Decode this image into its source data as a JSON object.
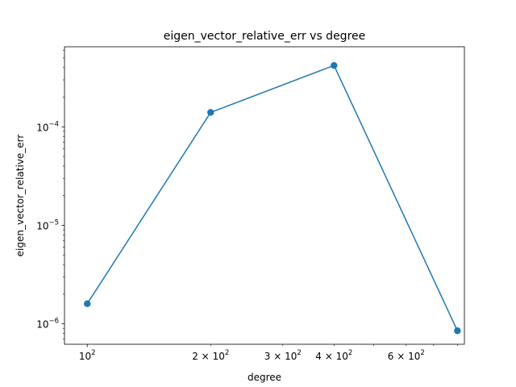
{
  "chart_data": {
    "type": "line",
    "title": "eigen_vector_relative_err vs degree",
    "xlabel": "degree",
    "ylabel": "eigen_vector_relative_err",
    "x_scale": "log",
    "y_scale": "log",
    "xlim": [
      88,
      832
    ],
    "ylim": [
      6.2e-07,
      0.00065
    ],
    "x_major_ticks": [
      {
        "value": 100,
        "base": "10",
        "exp": "2"
      }
    ],
    "x_minor_labeled_ticks": [
      {
        "value": 200,
        "coef": "2",
        "base": "10",
        "exp": "2"
      },
      {
        "value": 300,
        "coef": "3",
        "base": "10",
        "exp": "2"
      },
      {
        "value": 400,
        "coef": "4",
        "base": "10",
        "exp": "2"
      },
      {
        "value": 600,
        "coef": "6",
        "base": "10",
        "exp": "2"
      }
    ],
    "x_minor_unlabeled_ticks": [
      500,
      700,
      800
    ],
    "y_major_ticks": [
      {
        "value": 1e-06,
        "base": "10",
        "exp": "−6"
      },
      {
        "value": 1e-05,
        "base": "10",
        "exp": "−5"
      },
      {
        "value": 0.0001,
        "base": "10",
        "exp": "−4"
      }
    ],
    "grid": false,
    "series": [
      {
        "color": "#1f77b4",
        "marker": "circle",
        "points": [
          {
            "x": 100,
            "y": 1.6e-06
          },
          {
            "x": 200,
            "y": 0.00014
          },
          {
            "x": 400,
            "y": 0.00042
          },
          {
            "x": 800,
            "y": 8.5e-07
          }
        ]
      }
    ]
  }
}
